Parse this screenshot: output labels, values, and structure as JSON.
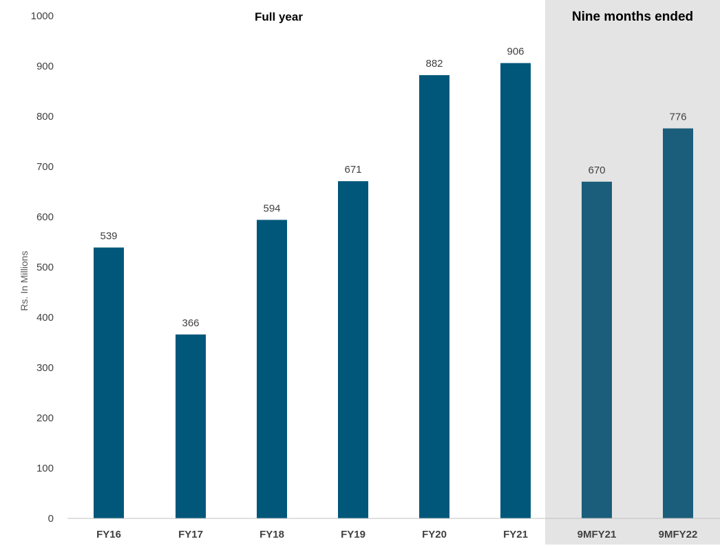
{
  "chart_data": {
    "type": "bar",
    "title": "",
    "xlabel": "",
    "ylabel": "Rs. In Millions",
    "ylim": [
      0,
      1000
    ],
    "yticks": [
      0,
      100,
      200,
      300,
      400,
      500,
      600,
      700,
      800,
      900,
      1000
    ],
    "categories": [
      "FY16",
      "FY17",
      "FY18",
      "FY19",
      "FY20",
      "FY21",
      "9MFY21",
      "9MFY22"
    ],
    "values": [
      539,
      366,
      594,
      671,
      882,
      906,
      670,
      776
    ],
    "data_labels": [
      "539",
      "366",
      "594",
      "671",
      "882",
      "906",
      "670",
      "776"
    ],
    "sections": [
      {
        "label": "Full year",
        "categories": [
          "FY16",
          "FY17",
          "FY18",
          "FY19",
          "FY20",
          "FY21"
        ],
        "shaded": false
      },
      {
        "label": "Nine months ended",
        "categories": [
          "9MFY21",
          "9MFY22"
        ],
        "shaded": true
      }
    ],
    "grid": false,
    "legend": "none",
    "colors": {
      "bar_full_year": "#00577a",
      "bar_nine_months": "#1b5e7b",
      "shaded_region": "#e4e4e4",
      "axis_line": "#bfbfbf"
    }
  }
}
